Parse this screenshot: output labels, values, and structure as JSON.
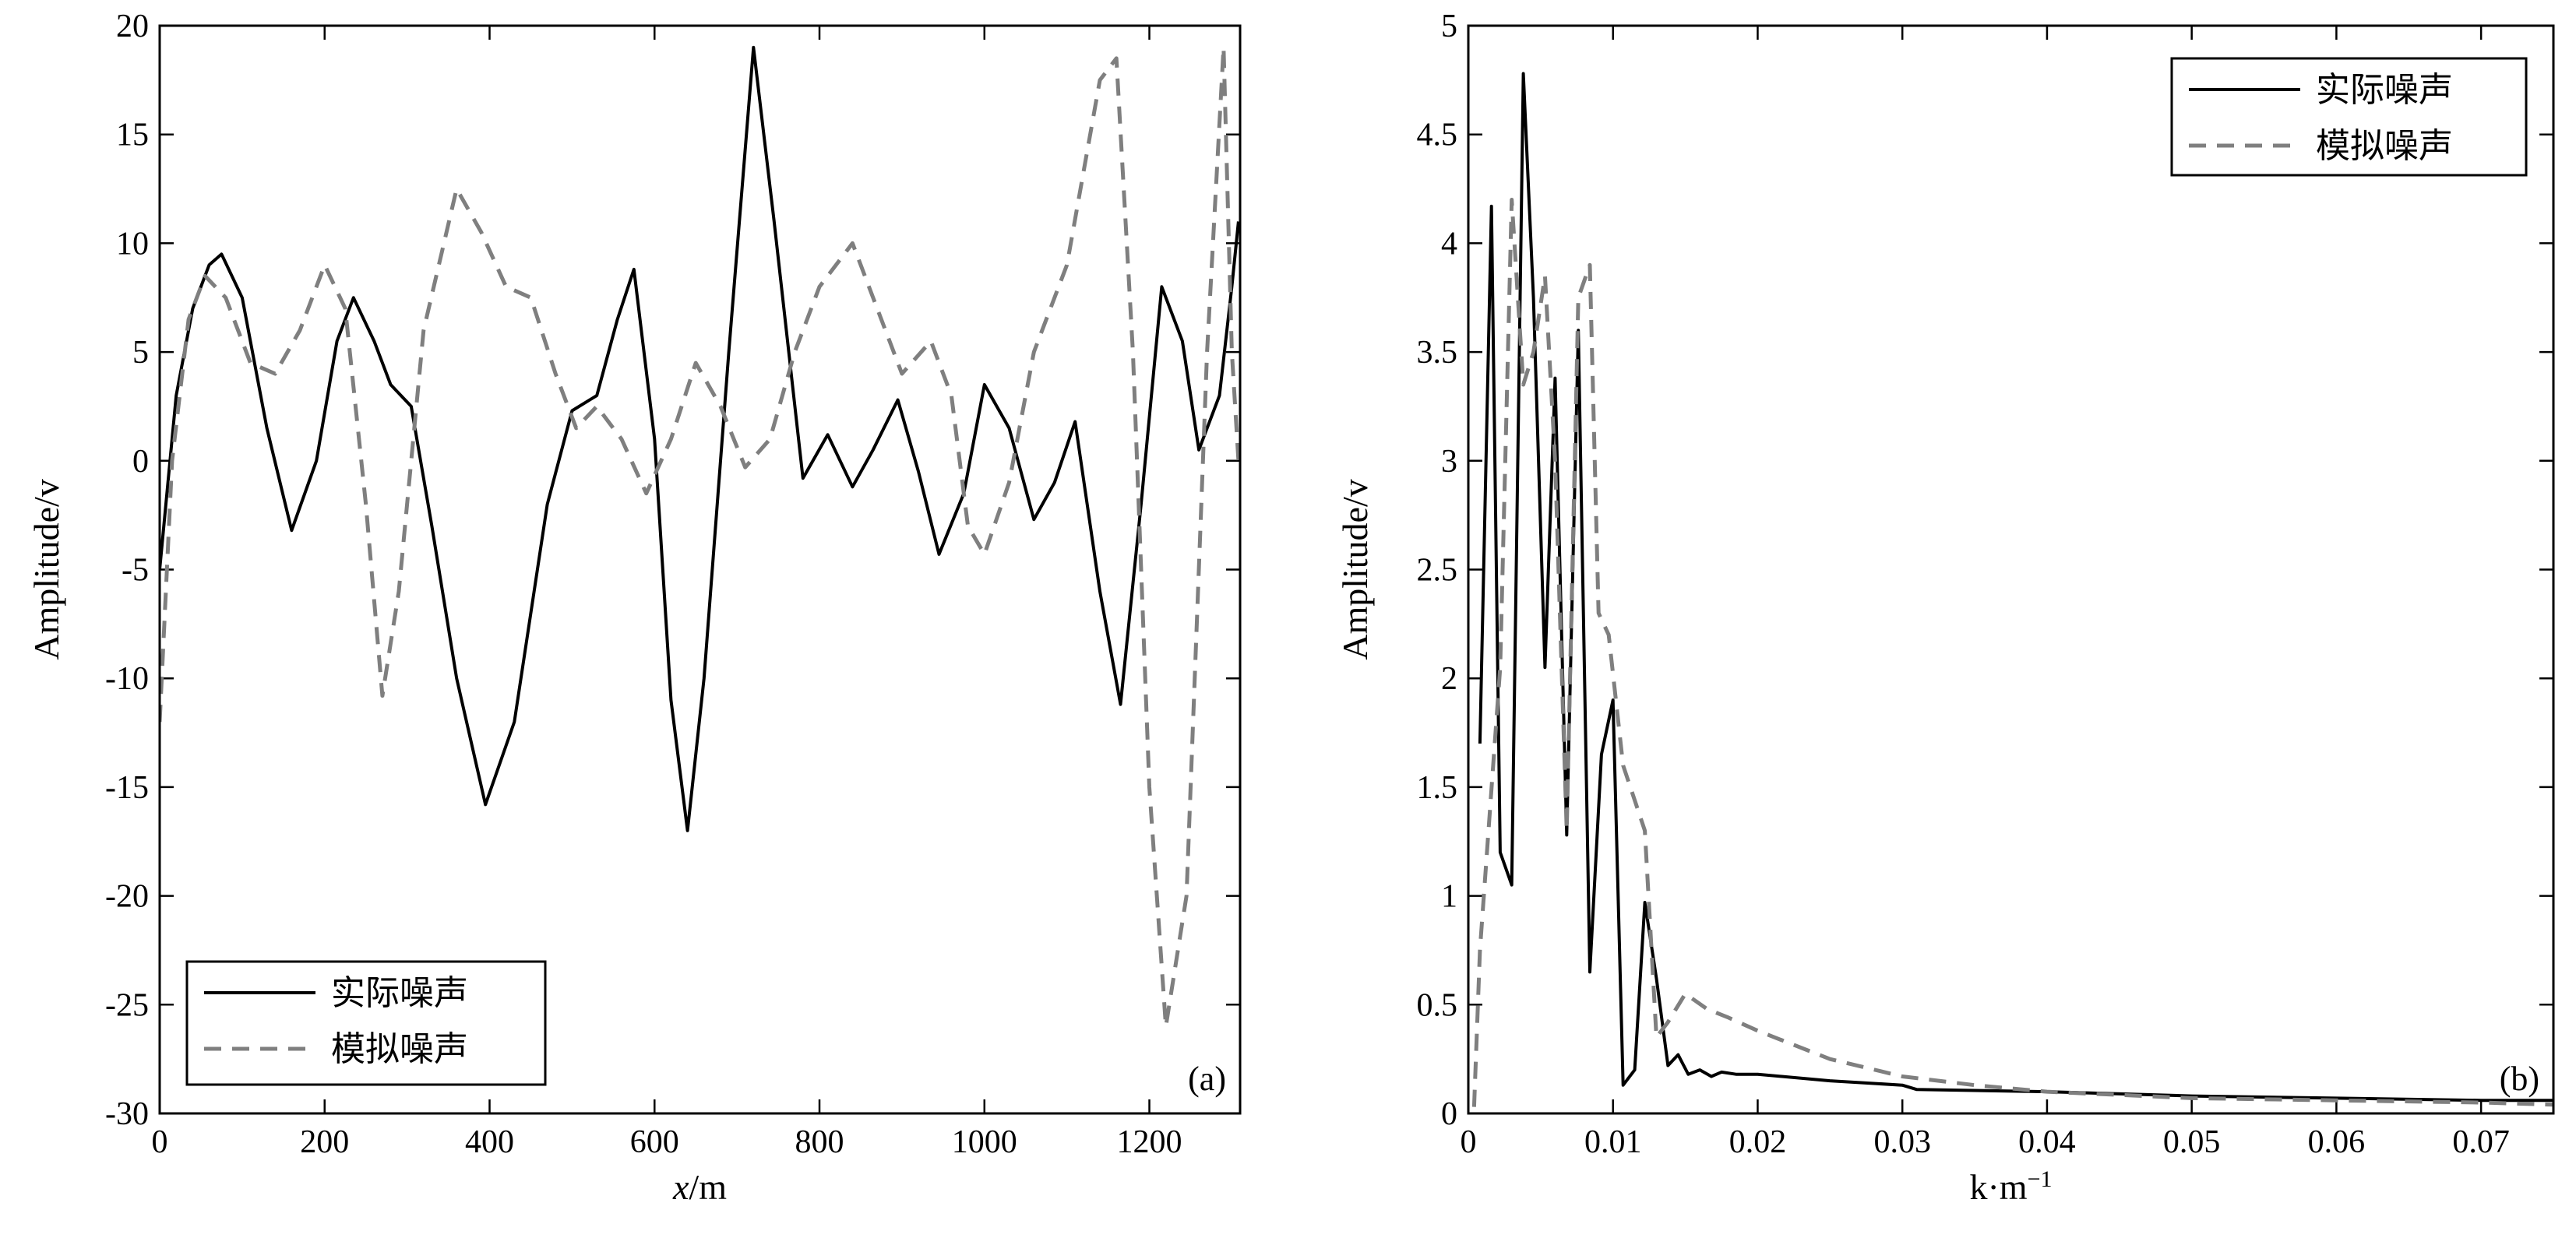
{
  "chart_data": [
    {
      "type": "line",
      "panel_label": "(a)",
      "xlabel_italic": "x",
      "xlabel_unit": "/m",
      "ylabel": "Amplitude/v",
      "xlim": [
        0,
        1310
      ],
      "ylim": [
        -30,
        20
      ],
      "xticks": [
        0,
        200,
        400,
        600,
        800,
        1000,
        1200
      ],
      "yticks": [
        -30,
        -25,
        -20,
        -15,
        -10,
        -5,
        0,
        5,
        10,
        15,
        20
      ],
      "legend_position": "bottom-left",
      "grid": false,
      "series": [
        {
          "name": "实际噪声",
          "style": "solid",
          "color": "#000000",
          "x": [
            0,
            20,
            40,
            60,
            75,
            100,
            130,
            160,
            190,
            215,
            235,
            260,
            280,
            305,
            330,
            360,
            395,
            430,
            470,
            500,
            530,
            555,
            575,
            600,
            620,
            640,
            660,
            690,
            720,
            745,
            780,
            810,
            840,
            865,
            895,
            920,
            945,
            975,
            1000,
            1030,
            1060,
            1085,
            1110,
            1140,
            1165,
            1190,
            1215,
            1240,
            1260,
            1285,
            1300,
            1308
          ],
          "y": [
            -5,
            3,
            7,
            9,
            9.5,
            7.5,
            1.5,
            -3.2,
            0,
            5.5,
            7.5,
            5.5,
            3.5,
            2.5,
            -3,
            -10,
            -15.8,
            -12,
            -2,
            2.3,
            3,
            6.5,
            8.8,
            1,
            -11,
            -17,
            -10,
            5,
            19,
            11,
            -0.8,
            1.2,
            -1.2,
            0.5,
            2.8,
            -0.5,
            -4.3,
            -1.5,
            3.5,
            1.5,
            -2.7,
            -1,
            1.8,
            -6,
            -11.2,
            -2,
            8,
            5.5,
            0.5,
            3,
            8,
            11
          ]
        },
        {
          "name": "模拟噪声",
          "style": "dashed",
          "color": "#7f7f7f",
          "x": [
            0,
            15,
            35,
            55,
            80,
            110,
            140,
            170,
            200,
            225,
            250,
            270,
            290,
            320,
            360,
            390,
            420,
            450,
            480,
            505,
            530,
            560,
            590,
            620,
            650,
            680,
            710,
            740,
            770,
            800,
            840,
            870,
            900,
            935,
            960,
            980,
            1000,
            1030,
            1060,
            1100,
            1140,
            1160,
            1180,
            1200,
            1220,
            1245,
            1270,
            1290,
            1300,
            1308
          ],
          "y": [
            -12,
            0,
            6.5,
            8.5,
            7.5,
            4.5,
            4,
            6,
            9,
            7,
            -2,
            -10.8,
            -6,
            6,
            12.5,
            10.5,
            8,
            7.5,
            4,
            1.5,
            2.5,
            1,
            -1.5,
            1,
            4.5,
            2.5,
            -0.3,
            1,
            5,
            8,
            10,
            7,
            4,
            5.5,
            3,
            -3,
            -4.3,
            -1,
            5,
            9,
            17.5,
            18.5,
            5,
            -15,
            -26,
            -20,
            5,
            19,
            5,
            0
          ]
        }
      ]
    },
    {
      "type": "line",
      "panel_label": "(b)",
      "xlabel": "k·m",
      "xlabel_sup": "−1",
      "ylabel": "Amplitude/v",
      "xlim": [
        0,
        0.075
      ],
      "ylim": [
        0,
        5
      ],
      "xticks": [
        0,
        0.01,
        0.02,
        0.03,
        0.04,
        0.05,
        0.06,
        0.07
      ],
      "yticks": [
        0,
        0.5,
        1,
        1.5,
        2,
        2.5,
        3,
        3.5,
        4,
        4.5,
        5
      ],
      "legend_position": "top-right",
      "grid": false,
      "series": [
        {
          "name": "实际噪声",
          "style": "solid",
          "color": "#000000",
          "x": [
            0.0008,
            0.0016,
            0.0022,
            0.003,
            0.0038,
            0.0045,
            0.0053,
            0.006,
            0.0068,
            0.0076,
            0.0084,
            0.0092,
            0.01,
            0.0107,
            0.0115,
            0.0122,
            0.013,
            0.0138,
            0.0145,
            0.0152,
            0.016,
            0.0168,
            0.0175,
            0.0185,
            0.02,
            0.025,
            0.03,
            0.031,
            0.04,
            0.05,
            0.06,
            0.07,
            0.075
          ],
          "y": [
            1.7,
            4.17,
            1.2,
            1.05,
            4.78,
            3.75,
            2.05,
            3.38,
            1.28,
            3.6,
            0.65,
            1.65,
            1.9,
            0.13,
            0.2,
            0.97,
            0.62,
            0.22,
            0.27,
            0.18,
            0.2,
            0.17,
            0.19,
            0.18,
            0.18,
            0.15,
            0.13,
            0.11,
            0.1,
            0.08,
            0.07,
            0.06,
            0.06
          ]
        },
        {
          "name": "模拟噪声",
          "style": "dashed",
          "color": "#7f7f7f",
          "x": [
            0.0004,
            0.0008,
            0.0015,
            0.0022,
            0.003,
            0.0038,
            0.0045,
            0.0053,
            0.006,
            0.0068,
            0.0076,
            0.0084,
            0.009,
            0.0097,
            0.0107,
            0.0122,
            0.013,
            0.0138,
            0.015,
            0.0165,
            0.018,
            0.02,
            0.025,
            0.03,
            0.035,
            0.04,
            0.05,
            0.06,
            0.07,
            0.075
          ],
          "y": [
            0.03,
            0.75,
            1.4,
            2.05,
            4.2,
            3.35,
            3.5,
            3.85,
            3.0,
            1.3,
            3.75,
            3.9,
            2.3,
            2.2,
            1.6,
            1.3,
            0.35,
            0.42,
            0.55,
            0.48,
            0.44,
            0.38,
            0.25,
            0.17,
            0.13,
            0.1,
            0.07,
            0.06,
            0.05,
            0.04
          ]
        }
      ]
    }
  ]
}
